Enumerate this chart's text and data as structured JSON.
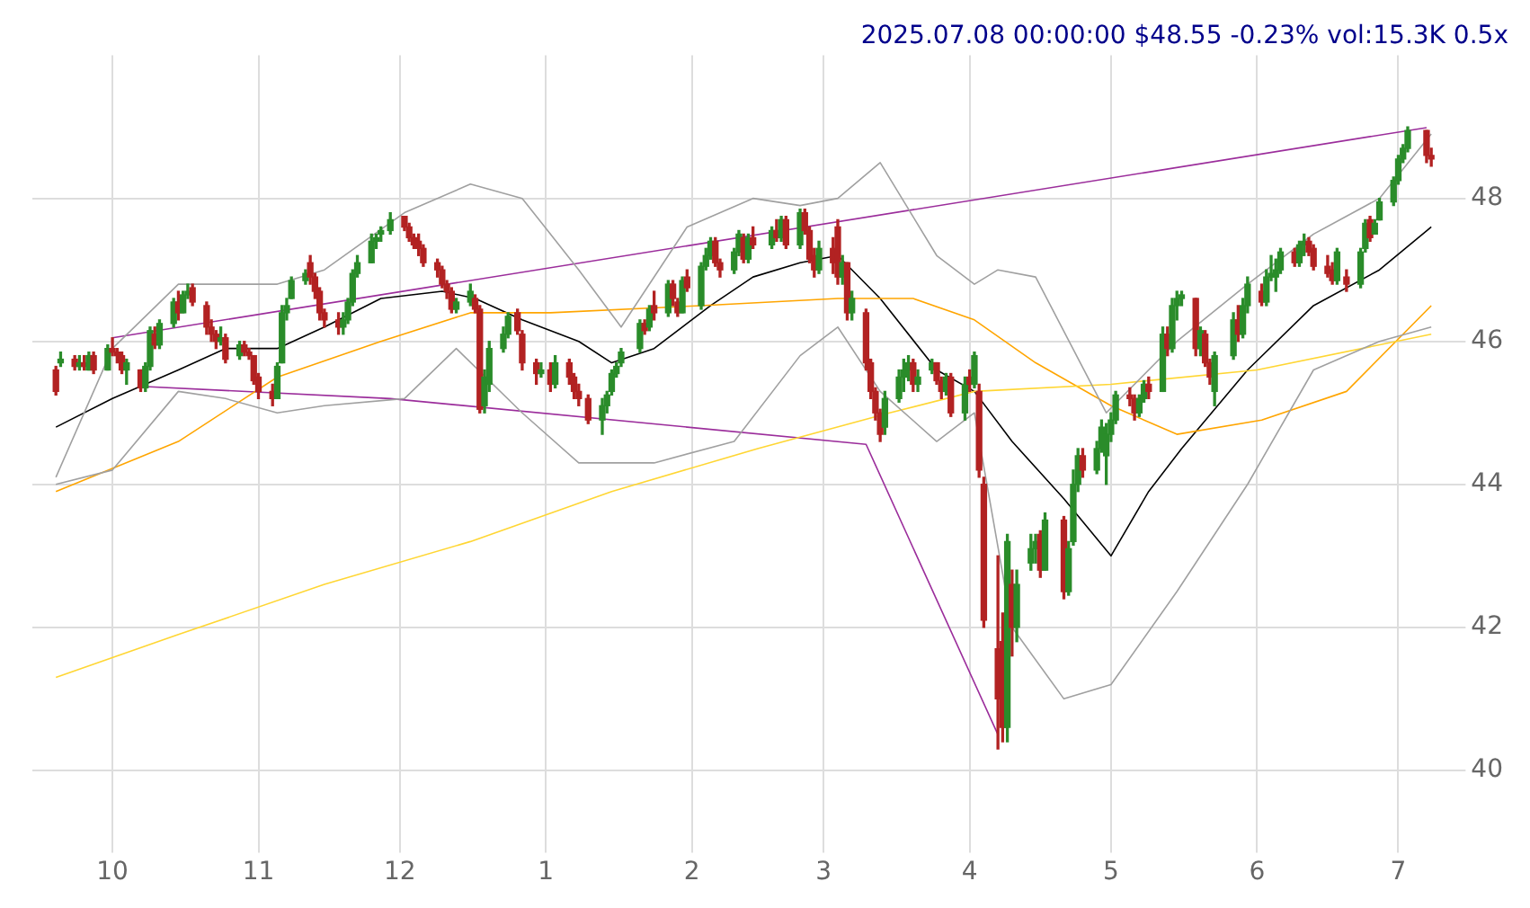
{
  "chart_data": {
    "type": "candlestick",
    "title": "2025.07.08 00:00:00 $48.55 -0.23% vol:15.3K 0.5x",
    "x": [
      "2024-09-19",
      "2024-09-20",
      "2024-09-23",
      "2024-09-24",
      "2024-09-25",
      "2024-09-26",
      "2024-09-27",
      "2024-09-30",
      "2024-10-01",
      "2024-10-02",
      "2024-10-03",
      "2024-10-04",
      "2024-10-07",
      "2024-10-08",
      "2024-10-09",
      "2024-10-10",
      "2024-10-11",
      "2024-10-14",
      "2024-10-15",
      "2024-10-16",
      "2024-10-17",
      "2024-10-18",
      "2024-10-21",
      "2024-10-22",
      "2024-10-23",
      "2024-10-24",
      "2024-10-25",
      "2024-10-28",
      "2024-10-29",
      "2024-10-30",
      "2024-10-31",
      "2024-11-01",
      "2024-11-04",
      "2024-11-05",
      "2024-11-06",
      "2024-11-07",
      "2024-11-08",
      "2024-11-11",
      "2024-11-12",
      "2024-11-13",
      "2024-11-14",
      "2024-11-15",
      "2024-11-18",
      "2024-11-19",
      "2024-11-20",
      "2024-11-21",
      "2024-11-22",
      "2024-11-25",
      "2024-11-26",
      "2024-11-27",
      "2024-11-29",
      "2024-12-02",
      "2024-12-03",
      "2024-12-04",
      "2024-12-05",
      "2024-12-06",
      "2024-12-09",
      "2024-12-10",
      "2024-12-11",
      "2024-12-12",
      "2024-12-13",
      "2024-12-16",
      "2024-12-17",
      "2024-12-18",
      "2024-12-19",
      "2024-12-20",
      "2024-12-23",
      "2024-12-24",
      "2024-12-26",
      "2024-12-27",
      "2024-12-30",
      "2024-12-31",
      "2025-01-02",
      "2025-01-03",
      "2025-01-06",
      "2025-01-07",
      "2025-01-08",
      "2025-01-10",
      "2025-01-13",
      "2025-01-14",
      "2025-01-15",
      "2025-01-16",
      "2025-01-17",
      "2025-01-21",
      "2025-01-22",
      "2025-01-23",
      "2025-01-24",
      "2025-01-27",
      "2025-01-28",
      "2025-01-29",
      "2025-01-30",
      "2025-01-31",
      "2025-02-03",
      "2025-02-04",
      "2025-02-05",
      "2025-02-06",
      "2025-02-07",
      "2025-02-10",
      "2025-02-11",
      "2025-02-12",
      "2025-02-13",
      "2025-02-14",
      "2025-02-18",
      "2025-02-19",
      "2025-02-20",
      "2025-02-21",
      "2025-02-24",
      "2025-02-25",
      "2025-02-26",
      "2025-02-27",
      "2025-02-28",
      "2025-03-03",
      "2025-03-04",
      "2025-03-05",
      "2025-03-06",
      "2025-03-07",
      "2025-03-10",
      "2025-03-11",
      "2025-03-12",
      "2025-03-13",
      "2025-03-14",
      "2025-03-17",
      "2025-03-18",
      "2025-03-19",
      "2025-03-20",
      "2025-03-21",
      "2025-03-24",
      "2025-03-25",
      "2025-03-26",
      "2025-03-27",
      "2025-03-28",
      "2025-03-31",
      "2025-04-01",
      "2025-04-02",
      "2025-04-03",
      "2025-04-04",
      "2025-04-07",
      "2025-04-08",
      "2025-04-09",
      "2025-04-10",
      "2025-04-11",
      "2025-04-14",
      "2025-04-15",
      "2025-04-16",
      "2025-04-17",
      "2025-04-21",
      "2025-04-22",
      "2025-04-23",
      "2025-04-24",
      "2025-04-25",
      "2025-04-28",
      "2025-04-29",
      "2025-04-30",
      "2025-05-01",
      "2025-05-02",
      "2025-05-05",
      "2025-05-06",
      "2025-05-07",
      "2025-05-08",
      "2025-05-09",
      "2025-05-12",
      "2025-05-13",
      "2025-05-14",
      "2025-05-15",
      "2025-05-16",
      "2025-05-19",
      "2025-05-20",
      "2025-05-21",
      "2025-05-22",
      "2025-05-23",
      "2025-05-27",
      "2025-05-28",
      "2025-05-29",
      "2025-05-30",
      "2025-06-02",
      "2025-06-03",
      "2025-06-04",
      "2025-06-05",
      "2025-06-06",
      "2025-06-09",
      "2025-06-10",
      "2025-06-11",
      "2025-06-12",
      "2025-06-13",
      "2025-06-16",
      "2025-06-17",
      "2025-06-18",
      "2025-06-20",
      "2025-06-23",
      "2025-06-24",
      "2025-06-25",
      "2025-06-26",
      "2025-06-27",
      "2025-06-30",
      "2025-07-01",
      "2025-07-02",
      "2025-07-03",
      "2025-07-07",
      "2025-07-08"
    ],
    "ohlc": [
      [
        45.6,
        45.65,
        45.25,
        45.3
      ],
      [
        45.7,
        45.85,
        45.65,
        45.75
      ],
      [
        45.75,
        45.8,
        45.6,
        45.65
      ],
      [
        45.65,
        45.8,
        45.6,
        45.7
      ],
      [
        45.7,
        45.8,
        45.6,
        45.65
      ],
      [
        45.6,
        45.85,
        45.6,
        45.8
      ],
      [
        45.8,
        45.85,
        45.55,
        45.6
      ],
      [
        45.6,
        45.95,
        45.6,
        45.9
      ],
      [
        45.9,
        46.05,
        45.8,
        45.85
      ],
      [
        45.85,
        45.9,
        45.7,
        45.8
      ],
      [
        45.8,
        45.85,
        45.55,
        45.6
      ],
      [
        45.6,
        45.75,
        45.4,
        45.7
      ],
      [
        45.6,
        45.6,
        45.3,
        45.35
      ],
      [
        45.35,
        45.7,
        45.3,
        45.65
      ],
      [
        45.65,
        46.2,
        45.6,
        46.15
      ],
      [
        46.1,
        46.2,
        45.9,
        45.95
      ],
      [
        45.95,
        46.3,
        45.9,
        46.25
      ],
      [
        46.25,
        46.6,
        46.2,
        46.55
      ],
      [
        46.55,
        46.7,
        46.3,
        46.4
      ],
      [
        46.4,
        46.7,
        46.4,
        46.65
      ],
      [
        46.65,
        46.8,
        46.6,
        46.7
      ],
      [
        46.75,
        46.8,
        46.5,
        46.55
      ],
      [
        46.5,
        46.55,
        46.1,
        46.2
      ],
      [
        46.2,
        46.3,
        46.0,
        46.1
      ],
      [
        46.1,
        46.15,
        45.9,
        46.0
      ],
      [
        46.0,
        46.2,
        45.95,
        46.05
      ],
      [
        46.05,
        46.1,
        45.7,
        45.75
      ],
      [
        45.8,
        46.0,
        45.75,
        45.95
      ],
      [
        45.95,
        46.0,
        45.8,
        45.85
      ],
      [
        45.85,
        45.9,
        45.75,
        45.8
      ],
      [
        45.8,
        45.8,
        45.4,
        45.45
      ],
      [
        45.5,
        45.55,
        45.2,
        45.3
      ],
      [
        45.3,
        45.4,
        45.1,
        45.2
      ],
      [
        45.2,
        45.7,
        45.2,
        45.65
      ],
      [
        45.7,
        46.5,
        45.7,
        46.4
      ],
      [
        46.4,
        46.6,
        46.3,
        46.5
      ],
      [
        46.6,
        46.9,
        46.6,
        46.85
      ],
      [
        46.85,
        47.0,
        46.8,
        46.95
      ],
      [
        47.1,
        47.2,
        46.8,
        46.9
      ],
      [
        46.9,
        46.95,
        46.6,
        46.7
      ],
      [
        46.7,
        46.75,
        46.3,
        46.4
      ],
      [
        46.4,
        46.45,
        46.2,
        46.3
      ],
      [
        46.3,
        46.4,
        46.1,
        46.2
      ],
      [
        46.2,
        46.4,
        46.1,
        46.3
      ],
      [
        46.3,
        46.6,
        46.25,
        46.55
      ],
      [
        46.55,
        47.0,
        46.5,
        46.95
      ],
      [
        46.95,
        47.2,
        46.9,
        47.1
      ],
      [
        47.1,
        47.5,
        47.1,
        47.4
      ],
      [
        47.4,
        47.5,
        47.3,
        47.45
      ],
      [
        47.5,
        47.6,
        47.4,
        47.55
      ],
      [
        47.55,
        47.8,
        47.5,
        47.7
      ],
      [
        47.75,
        47.75,
        47.55,
        47.6
      ],
      [
        47.6,
        47.65,
        47.4,
        47.45
      ],
      [
        47.45,
        47.5,
        47.3,
        47.35
      ],
      [
        47.4,
        47.5,
        47.2,
        47.3
      ],
      [
        47.3,
        47.35,
        47.05,
        47.1
      ],
      [
        47.1,
        47.15,
        46.9,
        47.0
      ],
      [
        47.0,
        47.05,
        46.75,
        46.8
      ],
      [
        46.8,
        46.85,
        46.6,
        46.7
      ],
      [
        46.7,
        46.75,
        46.4,
        46.45
      ],
      [
        46.45,
        46.6,
        46.4,
        46.55
      ],
      [
        46.55,
        46.8,
        46.5,
        46.7
      ],
      [
        46.6,
        46.65,
        46.4,
        46.45
      ],
      [
        46.45,
        46.5,
        45.0,
        45.05
      ],
      [
        45.1,
        45.6,
        45.0,
        45.5
      ],
      [
        45.4,
        46.0,
        45.3,
        45.9
      ],
      [
        45.9,
        46.2,
        45.85,
        46.1
      ],
      [
        46.1,
        46.4,
        46.05,
        46.35
      ],
      [
        46.4,
        46.45,
        46.1,
        46.15
      ],
      [
        46.1,
        46.15,
        45.6,
        45.7
      ],
      [
        45.7,
        45.75,
        45.4,
        45.55
      ],
      [
        45.55,
        45.7,
        45.5,
        45.6
      ],
      [
        45.6,
        45.7,
        45.3,
        45.4
      ],
      [
        45.4,
        45.8,
        45.35,
        45.7
      ],
      [
        45.7,
        45.75,
        45.4,
        45.5
      ],
      [
        45.5,
        45.55,
        45.2,
        45.3
      ],
      [
        45.3,
        45.4,
        45.1,
        45.2
      ],
      [
        45.2,
        45.25,
        44.85,
        44.9
      ],
      [
        44.9,
        45.2,
        44.7,
        45.1
      ],
      [
        45.1,
        45.3,
        45.0,
        45.25
      ],
      [
        45.3,
        45.6,
        45.25,
        45.55
      ],
      [
        45.55,
        45.7,
        45.5,
        45.65
      ],
      [
        45.7,
        45.9,
        45.65,
        45.85
      ],
      [
        45.9,
        46.3,
        45.85,
        46.25
      ],
      [
        46.25,
        46.3,
        46.1,
        46.15
      ],
      [
        46.2,
        46.5,
        46.15,
        46.45
      ],
      [
        46.5,
        46.7,
        46.3,
        46.4
      ],
      [
        46.4,
        46.85,
        46.35,
        46.8
      ],
      [
        46.8,
        46.85,
        46.5,
        46.6
      ],
      [
        46.55,
        46.6,
        46.35,
        46.4
      ],
      [
        46.4,
        46.9,
        46.4,
        46.85
      ],
      [
        46.9,
        47.0,
        46.7,
        46.75
      ],
      [
        46.5,
        47.1,
        46.45,
        47.05
      ],
      [
        47.05,
        47.3,
        47.0,
        47.2
      ],
      [
        47.2,
        47.45,
        47.15,
        47.4
      ],
      [
        47.4,
        47.45,
        47.05,
        47.1
      ],
      [
        47.1,
        47.15,
        46.9,
        47.0
      ],
      [
        47.0,
        47.3,
        46.95,
        47.25
      ],
      [
        47.25,
        47.55,
        47.2,
        47.5
      ],
      [
        47.45,
        47.5,
        47.1,
        47.15
      ],
      [
        47.15,
        47.5,
        47.1,
        47.45
      ],
      [
        47.45,
        47.6,
        47.3,
        47.35
      ],
      [
        47.35,
        47.6,
        47.3,
        47.55
      ],
      [
        47.55,
        47.7,
        47.4,
        47.45
      ],
      [
        47.45,
        47.75,
        47.4,
        47.7
      ],
      [
        47.7,
        47.75,
        47.3,
        47.35
      ],
      [
        47.35,
        47.85,
        47.3,
        47.8
      ],
      [
        47.8,
        47.85,
        47.5,
        47.55
      ],
      [
        47.55,
        47.6,
        47.1,
        47.15
      ],
      [
        47.2,
        47.3,
        46.9,
        47.0
      ],
      [
        47.0,
        47.4,
        46.95,
        47.3
      ],
      [
        47.3,
        47.45,
        46.95,
        47.1
      ],
      [
        47.6,
        47.7,
        46.8,
        46.9
      ],
      [
        46.9,
        47.2,
        46.8,
        47.1
      ],
      [
        47.1,
        47.1,
        46.3,
        46.4
      ],
      [
        46.4,
        46.7,
        46.3,
        46.6
      ],
      [
        46.4,
        46.45,
        45.6,
        45.7
      ],
      [
        45.7,
        45.75,
        45.2,
        45.3
      ],
      [
        45.3,
        45.35,
        44.9,
        45.0
      ],
      [
        45.0,
        45.05,
        44.6,
        44.7
      ],
      [
        44.8,
        45.3,
        44.7,
        45.2
      ],
      [
        45.2,
        45.6,
        45.15,
        45.5
      ],
      [
        45.5,
        45.75,
        45.3,
        45.6
      ],
      [
        45.6,
        45.8,
        45.45,
        45.7
      ],
      [
        45.7,
        45.75,
        45.3,
        45.4
      ],
      [
        45.4,
        45.6,
        45.3,
        45.5
      ],
      [
        45.6,
        45.75,
        45.55,
        45.7
      ],
      [
        45.7,
        45.7,
        45.4,
        45.45
      ],
      [
        45.45,
        45.5,
        45.2,
        45.3
      ],
      [
        45.3,
        45.55,
        45.25,
        45.5
      ],
      [
        45.5,
        45.55,
        44.95,
        45.0
      ],
      [
        45.0,
        45.5,
        44.9,
        45.4
      ],
      [
        45.5,
        45.6,
        45.3,
        45.4
      ],
      [
        45.4,
        45.85,
        45.35,
        45.8
      ],
      [
        45.3,
        45.4,
        44.1,
        44.2
      ],
      [
        44.0,
        44.1,
        42.0,
        42.1
      ],
      [
        41.7,
        43.0,
        40.3,
        41.0
      ],
      [
        41.8,
        42.2,
        40.4,
        40.6
      ],
      [
        40.6,
        43.3,
        40.4,
        43.2
      ],
      [
        42.6,
        42.8,
        41.6,
        42.0
      ],
      [
        42.0,
        42.8,
        41.8,
        42.6
      ],
      [
        42.9,
        43.3,
        42.8,
        43.1
      ],
      [
        43.1,
        43.3,
        42.9,
        43.2
      ],
      [
        43.3,
        43.35,
        42.7,
        42.8
      ],
      [
        42.8,
        43.6,
        42.8,
        43.5
      ],
      [
        43.5,
        43.55,
        42.4,
        42.5
      ],
      [
        42.5,
        43.2,
        42.45,
        43.1
      ],
      [
        43.2,
        44.2,
        43.15,
        44.0
      ],
      [
        44.0,
        44.5,
        43.9,
        44.4
      ],
      [
        44.4,
        44.5,
        44.1,
        44.2
      ],
      [
        44.2,
        44.6,
        44.15,
        44.5
      ],
      [
        44.5,
        44.9,
        44.45,
        44.8
      ],
      [
        44.4,
        44.85,
        44.0,
        44.7
      ],
      [
        44.7,
        45.0,
        44.6,
        44.9
      ],
      [
        44.9,
        45.3,
        44.85,
        45.25
      ],
      [
        45.25,
        45.35,
        45.1,
        45.2
      ],
      [
        45.2,
        45.25,
        44.9,
        45.0
      ],
      [
        45.0,
        45.25,
        44.95,
        45.2
      ],
      [
        45.2,
        45.45,
        45.15,
        45.4
      ],
      [
        45.4,
        45.5,
        45.2,
        45.3
      ],
      [
        45.3,
        46.2,
        45.3,
        46.1
      ],
      [
        46.1,
        46.2,
        45.8,
        45.9
      ],
      [
        45.9,
        46.6,
        45.85,
        46.5
      ],
      [
        46.5,
        46.7,
        46.3,
        46.6
      ],
      [
        46.6,
        46.7,
        46.5,
        46.65
      ],
      [
        46.6,
        46.6,
        45.8,
        45.9
      ],
      [
        45.9,
        46.2,
        45.8,
        46.15
      ],
      [
        46.1,
        46.15,
        45.65,
        45.7
      ],
      [
        45.7,
        45.75,
        45.4,
        45.5
      ],
      [
        45.3,
        45.85,
        45.1,
        45.8
      ],
      [
        45.8,
        46.4,
        45.75,
        46.3
      ],
      [
        46.3,
        46.5,
        46.0,
        46.1
      ],
      [
        46.1,
        46.6,
        46.05,
        46.5
      ],
      [
        46.5,
        46.9,
        46.4,
        46.8
      ],
      [
        46.7,
        46.8,
        46.5,
        46.55
      ],
      [
        46.55,
        47.0,
        46.5,
        46.9
      ],
      [
        46.9,
        47.2,
        46.85,
        46.95
      ],
      [
        46.9,
        47.15,
        46.7,
        47.0
      ],
      [
        47.0,
        47.3,
        46.95,
        47.25
      ],
      [
        47.25,
        47.3,
        47.05,
        47.1
      ],
      [
        47.1,
        47.4,
        47.05,
        47.35
      ],
      [
        47.35,
        47.5,
        47.2,
        47.4
      ],
      [
        47.4,
        47.45,
        47.2,
        47.25
      ],
      [
        47.3,
        47.35,
        47.0,
        47.05
      ],
      [
        47.05,
        47.2,
        46.9,
        46.95
      ],
      [
        47.0,
        47.1,
        46.8,
        46.85
      ],
      [
        46.85,
        47.3,
        46.8,
        47.25
      ],
      [
        46.9,
        47.0,
        46.7,
        46.8
      ],
      [
        46.8,
        47.3,
        46.75,
        47.25
      ],
      [
        47.3,
        47.7,
        47.25,
        47.65
      ],
      [
        47.7,
        47.75,
        47.4,
        47.45
      ],
      [
        47.5,
        47.7,
        47.5,
        47.65
      ],
      [
        47.7,
        48.0,
        47.7,
        47.95
      ],
      [
        47.95,
        48.3,
        47.9,
        48.25
      ],
      [
        48.25,
        48.6,
        48.2,
        48.55
      ],
      [
        48.55,
        48.75,
        48.5,
        48.7
      ],
      [
        48.7,
        49.0,
        48.65,
        48.95
      ],
      [
        48.95,
        48.95,
        48.5,
        48.6
      ],
      [
        48.6,
        48.7,
        48.45,
        48.55
      ]
    ],
    "series": [
      {
        "type": "line",
        "color": "#a0a0a0",
        "x": [
          "2024-09-19",
          "2024-10-01",
          "2024-10-15",
          "2024-11-05",
          "2024-11-15",
          "2024-12-02",
          "2024-12-16",
          "2024-12-27",
          "2025-01-08",
          "2025-01-17",
          "2025-01-31",
          "2025-02-14",
          "2025-02-24",
          "2025-03-04",
          "2025-03-13",
          "2025-03-25",
          "2025-04-02",
          "2025-04-07",
          "2025-04-15",
          "2025-04-30",
          "2025-05-15",
          "2025-05-30",
          "2025-06-13",
          "2025-06-27",
          "2025-07-08"
        ],
        "values": [
          44.1,
          45.9,
          46.8,
          46.8,
          47.0,
          47.8,
          48.2,
          48.0,
          47.0,
          46.2,
          47.6,
          48.0,
          47.9,
          48.0,
          48.5,
          47.2,
          46.8,
          47.0,
          46.9,
          45.0,
          46.0,
          46.8,
          47.5,
          48.0,
          48.9
        ]
      },
      {
        "type": "line",
        "color": "#a0a0a0",
        "x": [
          "2024-09-19",
          "2024-10-01",
          "2024-10-15",
          "2024-10-25",
          "2024-11-05",
          "2024-11-15",
          "2024-12-02",
          "2024-12-13",
          "2024-12-27",
          "2025-01-08",
          "2025-01-24",
          "2025-02-10",
          "2025-02-24",
          "2025-03-04",
          "2025-03-13",
          "2025-03-25",
          "2025-04-02",
          "2025-04-10",
          "2025-04-21",
          "2025-05-01",
          "2025-05-15",
          "2025-05-30",
          "2025-06-13",
          "2025-06-27",
          "2025-07-08"
        ],
        "values": [
          44.0,
          44.2,
          45.3,
          45.2,
          45.0,
          45.1,
          45.2,
          45.9,
          45.0,
          44.3,
          44.3,
          44.6,
          45.8,
          46.2,
          45.3,
          44.6,
          45.0,
          42.0,
          41.0,
          41.2,
          42.5,
          44.0,
          45.6,
          46.0,
          46.2
        ]
      },
      {
        "type": "line",
        "color": "#ffd633",
        "x": [
          "2024-09-19",
          "2024-10-15",
          "2024-11-15",
          "2024-12-16",
          "2025-01-15",
          "2025-02-15",
          "2025-03-15",
          "2025-04-02",
          "2025-05-01",
          "2025-06-01",
          "2025-07-08"
        ],
        "values": [
          41.3,
          41.9,
          42.6,
          43.2,
          43.9,
          44.5,
          45.0,
          45.3,
          45.4,
          45.6,
          46.1
        ]
      },
      {
        "type": "line",
        "color": "#ffa500",
        "x": [
          "2024-09-19",
          "2024-10-15",
          "2024-11-05",
          "2024-11-27",
          "2024-12-16",
          "2025-01-02",
          "2025-02-03",
          "2025-03-04",
          "2025-03-20",
          "2025-04-02",
          "2025-04-15",
          "2025-05-01",
          "2025-05-15",
          "2025-06-02",
          "2025-06-20",
          "2025-07-08"
        ],
        "values": [
          43.9,
          44.6,
          45.5,
          46.0,
          46.4,
          46.4,
          46.5,
          46.6,
          46.6,
          46.3,
          45.7,
          45.1,
          44.7,
          44.9,
          45.3,
          46.5
        ]
      },
      {
        "type": "line",
        "color": "#000000",
        "x": [
          "2024-09-19",
          "2024-10-01",
          "2024-10-15",
          "2024-10-25",
          "2024-11-05",
          "2024-11-15",
          "2024-11-27",
          "2024-12-10",
          "2024-12-17",
          "2024-12-27",
          "2025-01-08",
          "2025-01-15",
          "2025-01-24",
          "2025-02-05",
          "2025-02-14",
          "2025-02-24",
          "2025-03-04",
          "2025-03-13",
          "2025-03-25",
          "2025-04-02",
          "2025-04-10",
          "2025-04-21",
          "2025-05-01",
          "2025-05-09",
          "2025-05-16",
          "2025-05-30",
          "2025-06-13",
          "2025-06-27",
          "2025-07-08"
        ],
        "values": [
          44.8,
          45.2,
          45.6,
          45.9,
          45.9,
          46.2,
          46.6,
          46.7,
          46.6,
          46.3,
          46.0,
          45.7,
          45.9,
          46.5,
          46.9,
          47.1,
          47.2,
          46.6,
          45.6,
          45.3,
          44.6,
          43.8,
          43.0,
          43.9,
          44.5,
          45.6,
          46.5,
          47.0,
          47.6
        ]
      },
      {
        "type": "line",
        "color": "#9b2d9b",
        "x": [
          "2024-10-01",
          "2025-07-07"
        ],
        "values": [
          46.05,
          48.99
        ]
      },
      {
        "type": "line",
        "color": "#9b2d9b",
        "x": [
          "2024-10-07",
          "2024-11-29",
          "2025-03-10",
          "2025-04-07"
        ],
        "values": [
          45.37,
          45.2,
          44.56,
          40.5
        ]
      }
    ],
    "xlim": [
      "2024-09-14",
      "2025-07-13"
    ],
    "xticks": [
      {
        "value": "2024-10-01",
        "label": "10"
      },
      {
        "value": "2024-11-01",
        "label": "11"
      },
      {
        "value": "2024-12-01",
        "label": "12"
      },
      {
        "value": "2025-01-01",
        "label": "1"
      },
      {
        "value": "2025-02-01",
        "label": "2"
      },
      {
        "value": "2025-03-01",
        "label": "3"
      },
      {
        "value": "2025-04-01",
        "label": "4"
      },
      {
        "value": "2025-05-01",
        "label": "5"
      },
      {
        "value": "2025-06-01",
        "label": "6"
      },
      {
        "value": "2025-07-01",
        "label": "7"
      }
    ],
    "ylim": [
      39.0,
      50.0
    ],
    "yticks": [
      40,
      42,
      44,
      46,
      48
    ],
    "grid": true,
    "legend": false
  }
}
